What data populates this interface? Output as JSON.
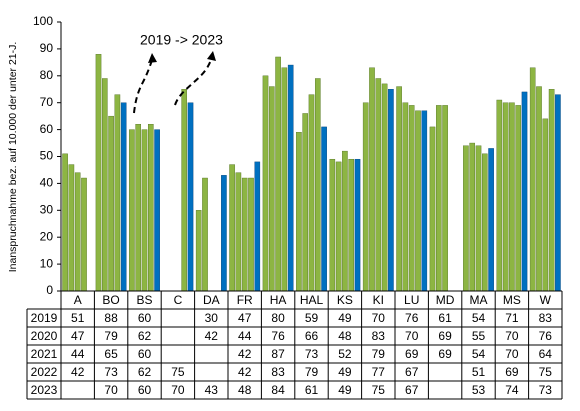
{
  "chart_data": {
    "type": "bar",
    "ylabel": "Inanspruchnahme bez. auf 10.000 der unter 21-J.",
    "ylim": [
      0,
      100
    ],
    "yticks": [
      0,
      10,
      20,
      30,
      40,
      50,
      60,
      70,
      80,
      90,
      100
    ],
    "categories": [
      "A",
      "BO",
      "BS",
      "C",
      "DA",
      "FR",
      "HA",
      "HAL",
      "KS",
      "KI",
      "LU",
      "MD",
      "MA",
      "MS",
      "W"
    ],
    "series": [
      {
        "name": "2019",
        "values": [
          51,
          88,
          60,
          null,
          30,
          47,
          80,
          59,
          49,
          70,
          76,
          61,
          54,
          71,
          83
        ]
      },
      {
        "name": "2020",
        "values": [
          47,
          79,
          62,
          null,
          42,
          44,
          76,
          66,
          48,
          83,
          70,
          69,
          55,
          70,
          76
        ]
      },
      {
        "name": "2021",
        "values": [
          44,
          65,
          60,
          null,
          null,
          42,
          87,
          73,
          52,
          79,
          69,
          69,
          54,
          70,
          64
        ]
      },
      {
        "name": "2022",
        "values": [
          42,
          73,
          62,
          75,
          null,
          42,
          83,
          79,
          49,
          77,
          67,
          null,
          51,
          69,
          75
        ]
      },
      {
        "name": "2023",
        "values": [
          null,
          70,
          60,
          70,
          43,
          48,
          84,
          61,
          49,
          75,
          67,
          null,
          53,
          74,
          73
        ]
      }
    ],
    "annotation": "2019 -> 2023",
    "colors": {
      "green": "#8db543",
      "blue": "#0070c0",
      "axis": "#000000"
    },
    "grid": false,
    "data_table": true
  }
}
